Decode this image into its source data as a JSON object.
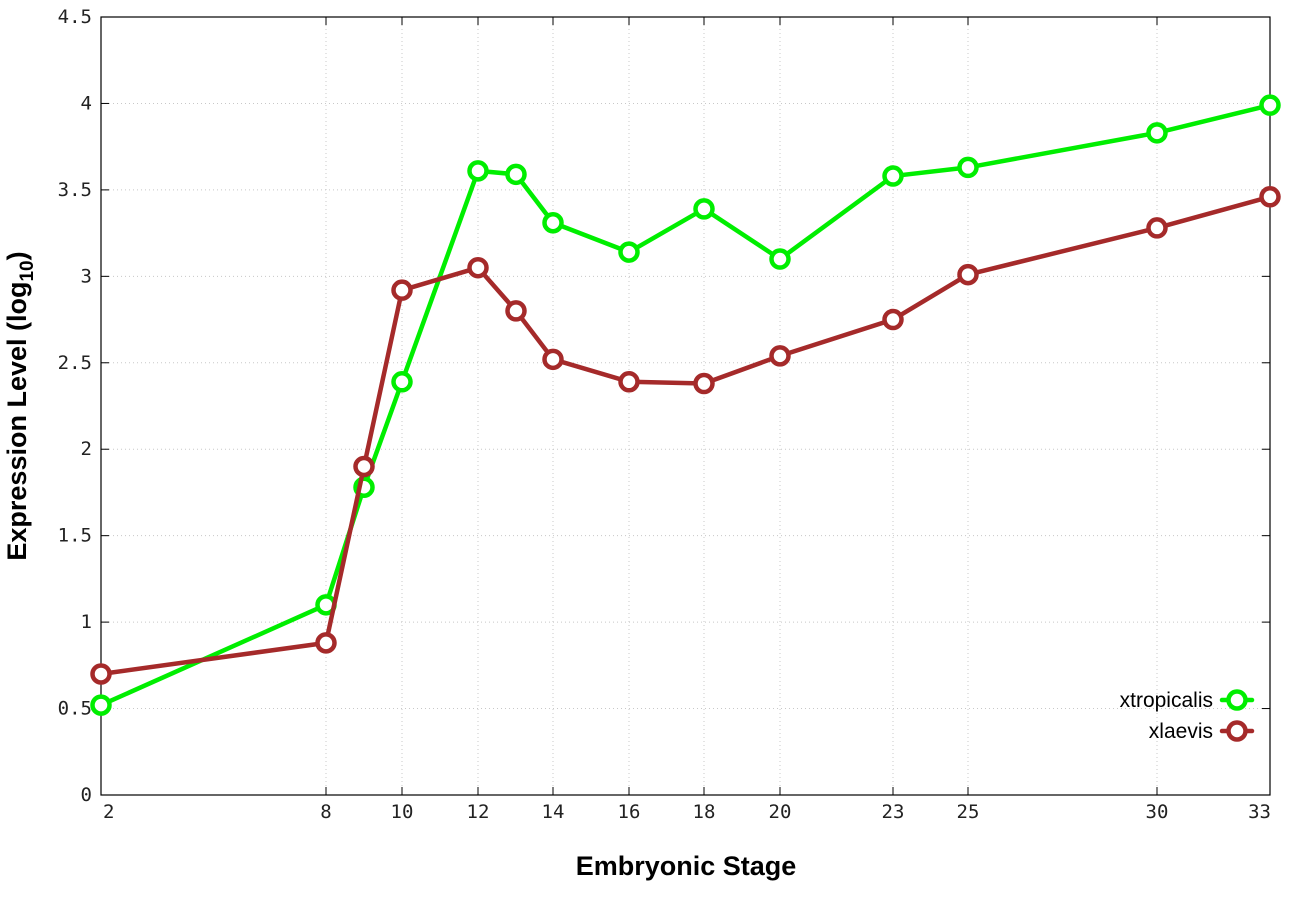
{
  "chart_data": {
    "type": "line",
    "xlabel": "Embryonic Stage",
    "ylabel_main": "Expression Level (log",
    "ylabel_sub": "10",
    "ylabel_close": ")",
    "x_categories": [
      "2",
      "8",
      "10",
      "12",
      "14",
      "16",
      "18",
      "20",
      "23",
      "25",
      "30",
      "33"
    ],
    "x_tick_labels": [
      "2",
      "8",
      "10",
      "12",
      "14",
      "16",
      "18",
      "20",
      "23",
      "25",
      "30",
      "33"
    ],
    "y_tick_labels": [
      "0",
      "0.5",
      "1",
      "1.5",
      "2",
      "2.5",
      "3",
      "3.5",
      "4",
      "4.5"
    ],
    "ylim": [
      0,
      4.5
    ],
    "grid": true,
    "legend_position": "bottom-right",
    "series": [
      {
        "name": "xtropicalis",
        "color": "#00ee00",
        "x": [
          2,
          8,
          9,
          10,
          12,
          13,
          14,
          16,
          18,
          20,
          23,
          25,
          30,
          33
        ],
        "values": [
          0.52,
          1.1,
          1.78,
          2.39,
          3.61,
          3.59,
          3.31,
          3.14,
          3.39,
          3.1,
          3.58,
          3.63,
          3.83,
          3.99
        ]
      },
      {
        "name": "xlaevis",
        "color": "#a52a2a",
        "x": [
          2,
          8,
          9,
          10,
          12,
          13,
          14,
          16,
          18,
          20,
          23,
          25,
          30,
          33
        ],
        "values": [
          0.7,
          0.88,
          1.9,
          2.92,
          3.05,
          2.8,
          2.52,
          2.39,
          2.38,
          2.54,
          2.75,
          3.01,
          3.28,
          3.46
        ]
      }
    ]
  }
}
